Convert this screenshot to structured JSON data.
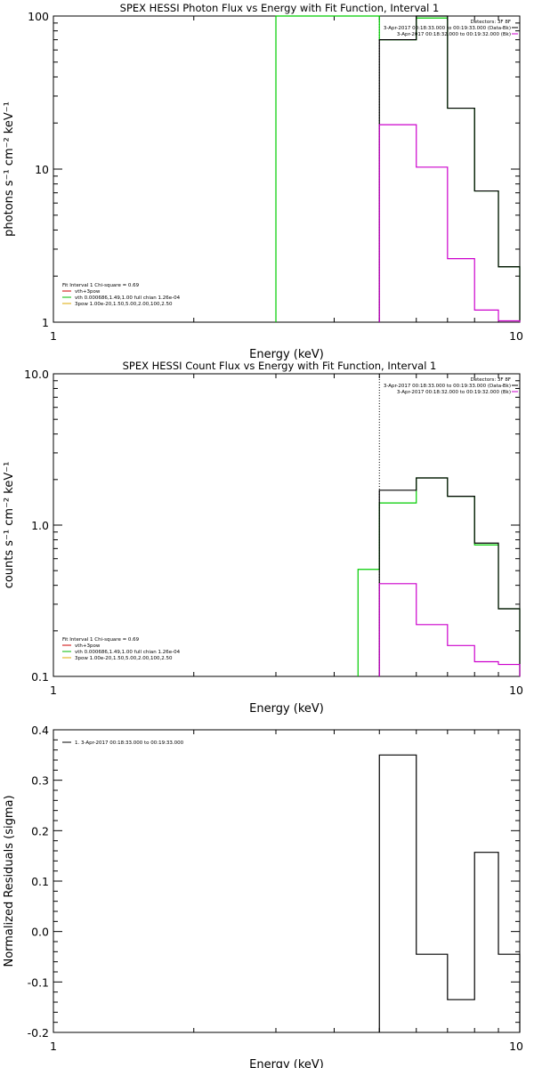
{
  "chart_data": [
    {
      "type": "histogram-line",
      "title": "SPEX HESSI Photon Flux vs Energy with Fit Function, Interval 1",
      "xlabel": "Energy (keV)",
      "ylabel": "photons s⁻¹ cm⁻² keV⁻¹",
      "x_scale": "log",
      "y_scale": "log",
      "xlim": [
        1,
        10
      ],
      "ylim": [
        1,
        100
      ],
      "x_ticks": [
        1,
        10
      ],
      "x_tick_labels": [
        "1",
        "10"
      ],
      "y_ticks": [
        1,
        10,
        100
      ],
      "y_tick_labels": [
        "1",
        "10",
        "100"
      ],
      "legend_top_right": [
        {
          "text": "Detectors: 3F 8F",
          "color": "#000000",
          "line": false
        },
        {
          "text": "3-Apr-2017 00:18:33.000 to 00:19:33.000 (Data-Bk)",
          "color": "#000000",
          "line": true
        },
        {
          "text": "3-Apr-2017 00:18:32.000 to 00:19:32.000 (Bk)",
          "color": "#cc00cc",
          "line": true
        }
      ],
      "legend_bottom_left": [
        {
          "text": "Fit Interval 1   Chi-square = 0.69",
          "color": "#000000",
          "line": false
        },
        {
          "text": "vth+3pow",
          "color": "#cc0000",
          "line": true
        },
        {
          "text": "vth 0.000686,1.49,1.00  full chian 1.26e-04",
          "color": "#00bb00",
          "line": true
        },
        {
          "text": "3pow 1.00e-20,1.50,5.00,2.00,100,2.50",
          "color": "#ddaa00",
          "line": true
        }
      ],
      "series": [
        {
          "label": "Data-Bk",
          "color": "#000000",
          "edges": [
            5,
            6,
            7,
            8,
            9,
            10
          ],
          "values": [
            70,
            100,
            25,
            7.2,
            2.3
          ]
        },
        {
          "label": "Bk",
          "color": "#cc00cc",
          "edges": [
            5,
            6,
            7,
            8,
            9,
            10
          ],
          "values": [
            19.5,
            10.3,
            2.6,
            1.2,
            1.02
          ]
        },
        {
          "label": "vth",
          "color": "#00cc00",
          "edges": [
            3,
            5,
            6,
            7,
            8,
            9,
            10
          ],
          "values": [
            100,
            70,
            97,
            25,
            7.2,
            2.3
          ]
        }
      ],
      "vlines": [
        {
          "x": 5,
          "style": "dotted",
          "color": "#000000"
        },
        {
          "x": 3,
          "style": "solid",
          "color": "#00cc00"
        }
      ]
    },
    {
      "type": "histogram-line",
      "title": "SPEX HESSI Count Flux vs Energy with Fit Function, Interval 1",
      "xlabel": "Energy (keV)",
      "ylabel": "counts s⁻¹ cm⁻² keV⁻¹",
      "x_scale": "log",
      "y_scale": "log",
      "xlim": [
        1,
        10
      ],
      "ylim": [
        0.1,
        10
      ],
      "x_ticks": [
        1,
        10
      ],
      "x_tick_labels": [
        "1",
        "10"
      ],
      "y_ticks": [
        0.1,
        1,
        10
      ],
      "y_tick_labels": [
        "0.1",
        "1.0",
        "10.0"
      ],
      "legend_top_right": [
        {
          "text": "Detectors: 3F 8F",
          "color": "#000000",
          "line": false
        },
        {
          "text": "3-Apr-2017 00:18:33.000 to 00:19:33.000 (Data-Bk)",
          "color": "#000000",
          "line": true
        },
        {
          "text": "3-Apr-2017 00:18:32.000 to 00:19:32.000 (Bk)",
          "color": "#cc00cc",
          "line": true
        }
      ],
      "legend_bottom_left": [
        {
          "text": "Fit Interval 1   Chi-square = 0.69",
          "color": "#000000",
          "line": false
        },
        {
          "text": "vth+3pow",
          "color": "#cc0000",
          "line": true
        },
        {
          "text": "vth 0.000686,1.49,1.00  full chian 1.26e-04",
          "color": "#00bb00",
          "line": true
        },
        {
          "text": "3pow 1.00e-20,1.50,5.00,2.00,100,2.50",
          "color": "#ddaa00",
          "line": true
        }
      ],
      "series": [
        {
          "label": "Data-Bk",
          "color": "#000000",
          "edges": [
            5,
            6,
            7,
            8,
            9,
            10
          ],
          "values": [
            1.7,
            2.05,
            1.55,
            0.76,
            0.28
          ]
        },
        {
          "label": "Bk",
          "color": "#cc00cc",
          "edges": [
            5,
            6,
            7,
            8,
            9,
            10
          ],
          "values": [
            0.41,
            0.22,
            0.16,
            0.125,
            0.12
          ]
        },
        {
          "label": "vth",
          "color": "#00cc00",
          "edges": [
            4.5,
            5,
            6,
            7,
            8,
            9,
            10
          ],
          "values": [
            0.51,
            1.4,
            2.05,
            1.55,
            0.74,
            0.28
          ]
        }
      ],
      "vlines": [
        {
          "x": 5,
          "style": "dotted",
          "color": "#000000"
        }
      ]
    },
    {
      "type": "histogram-line",
      "title": "",
      "xlabel": "Energy (keV)",
      "ylabel": "Normalized Residuals (sigma)",
      "x_scale": "log",
      "y_scale": "linear",
      "xlim": [
        1,
        10
      ],
      "ylim": [
        -0.2,
        0.4
      ],
      "x_ticks": [
        1,
        10
      ],
      "x_tick_labels": [
        "1",
        "10"
      ],
      "y_ticks": [
        -0.2,
        -0.1,
        0.0,
        0.1,
        0.2,
        0.3,
        0.4
      ],
      "y_tick_labels": [
        "-0.2",
        "-0.1",
        "0.0",
        "0.1",
        "0.2",
        "0.3",
        "0.4"
      ],
      "legend_top_left": [
        {
          "text": "1.  3-Apr-2017 00:18:33.000 to 00:19:33.000",
          "color": "#000000",
          "line": true
        }
      ],
      "series": [
        {
          "label": "Residuals",
          "color": "#000000",
          "edges": [
            5,
            6,
            7,
            8,
            9,
            10
          ],
          "values": [
            0.35,
            -0.045,
            -0.135,
            0.157,
            -0.045
          ]
        }
      ],
      "vlines": []
    }
  ]
}
